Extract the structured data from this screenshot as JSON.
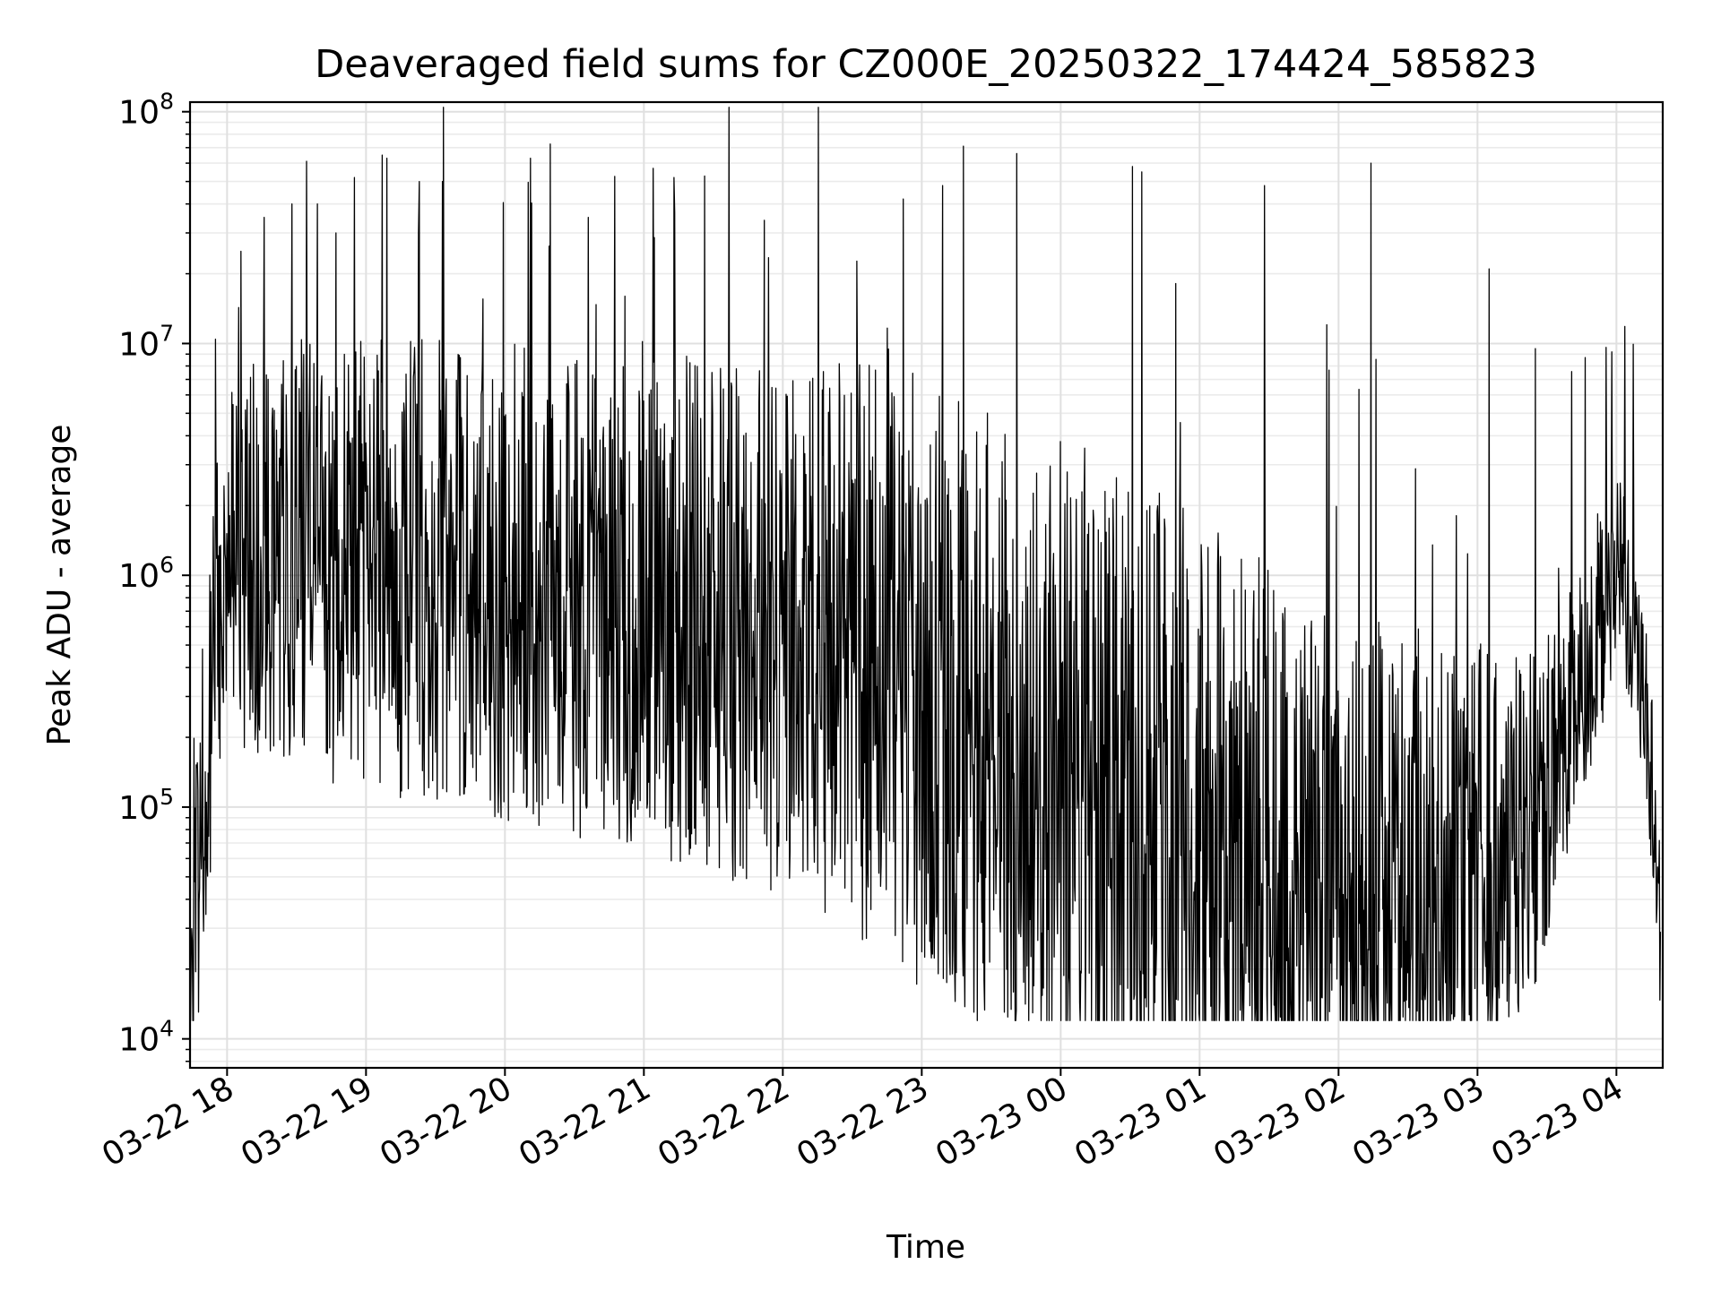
{
  "chart_data": {
    "type": "line",
    "title": "Deaveraged field sums for CZ000E_20250322_174424_585823",
    "xlabel": "Time",
    "ylabel": "Peak ADU - average",
    "x_scale": "time",
    "y_scale": "log",
    "xlim": [
      "2025-03-22 17:44",
      "2025-03-23 04:20"
    ],
    "ylim": [
      7500,
      110000000
    ],
    "grid": true,
    "line_color": "#000000",
    "x_ticks": [
      {
        "time": "2025-03-22 18:00",
        "label": "03-22 18"
      },
      {
        "time": "2025-03-22 19:00",
        "label": "03-22 19"
      },
      {
        "time": "2025-03-22 20:00",
        "label": "03-22 20"
      },
      {
        "time": "2025-03-22 21:00",
        "label": "03-22 21"
      },
      {
        "time": "2025-03-22 22:00",
        "label": "03-22 22"
      },
      {
        "time": "2025-03-22 23:00",
        "label": "03-22 23"
      },
      {
        "time": "2025-03-23 00:00",
        "label": "03-23 00"
      },
      {
        "time": "2025-03-23 01:00",
        "label": "03-23 01"
      },
      {
        "time": "2025-03-23 02:00",
        "label": "03-23 02"
      },
      {
        "time": "2025-03-23 03:00",
        "label": "03-23 03"
      },
      {
        "time": "2025-03-23 04:00",
        "label": "03-23 04"
      }
    ],
    "y_ticks": [
      {
        "value": 10000,
        "base": "10",
        "exp": "4"
      },
      {
        "value": 100000,
        "base": "10",
        "exp": "5"
      },
      {
        "value": 1000000,
        "base": "10",
        "exp": "6"
      },
      {
        "value": 10000000,
        "base": "10",
        "exp": "7"
      },
      {
        "value": 100000000,
        "base": "10",
        "exp": "8"
      }
    ],
    "series": [
      {
        "values": [
          [
            "2025-03-22 17:44",
            20000
          ],
          [
            "2025-03-22 17:46",
            15000
          ],
          [
            "2025-03-22 17:47",
            35000
          ],
          [
            "2025-03-22 17:48",
            45000
          ],
          [
            "2025-03-22 17:50",
            120000
          ],
          [
            "2025-03-22 17:52",
            180000
          ],
          [
            "2025-03-22 17:54",
            350000
          ],
          [
            "2025-03-22 17:56",
            600000
          ],
          [
            "2025-03-22 17:58",
            900000
          ],
          [
            "2025-03-22 18:05",
            1000000
          ],
          [
            "2025-03-22 18:10",
            1100000
          ],
          [
            "2025-03-22 18:20",
            1100000
          ],
          [
            "2025-03-22 18:30",
            1050000
          ],
          [
            "2025-03-22 18:45",
            1000000
          ],
          [
            "2025-03-22 19:00",
            1000000
          ],
          [
            "2025-03-22 19:15",
            950000
          ],
          [
            "2025-03-22 19:30",
            900000
          ],
          [
            "2025-03-22 19:45",
            900000
          ],
          [
            "2025-03-22 20:00",
            800000
          ],
          [
            "2025-03-22 20:20",
            750000
          ],
          [
            "2025-03-22 20:40",
            700000
          ],
          [
            "2025-03-22 21:00",
            650000
          ],
          [
            "2025-03-22 21:20",
            600000
          ],
          [
            "2025-03-22 21:40",
            550000
          ],
          [
            "2025-03-22 22:00",
            500000
          ],
          [
            "2025-03-22 22:20",
            450000
          ],
          [
            "2025-03-22 22:40",
            380000
          ],
          [
            "2025-03-22 23:00",
            300000
          ],
          [
            "2025-03-22 23:20",
            220000
          ],
          [
            "2025-03-22 23:40",
            160000
          ],
          [
            "2025-03-23 00:00",
            130000
          ],
          [
            "2025-03-23 00:20",
            100000
          ],
          [
            "2025-03-23 00:40",
            75000
          ],
          [
            "2025-03-23 01:00",
            60000
          ],
          [
            "2025-03-23 01:20",
            50000
          ],
          [
            "2025-03-23 01:40",
            45000
          ],
          [
            "2025-03-23 02:00",
            42000
          ],
          [
            "2025-03-23 02:20",
            42000
          ],
          [
            "2025-03-23 02:40",
            45000
          ],
          [
            "2025-03-23 02:55",
            50000
          ],
          [
            "2025-03-23 03:10",
            60000
          ],
          [
            "2025-03-23 03:25",
            80000
          ],
          [
            "2025-03-23 03:35",
            150000
          ],
          [
            "2025-03-23 03:45",
            350000
          ],
          [
            "2025-03-23 03:55",
            700000
          ],
          [
            "2025-03-23 04:00",
            1000000
          ],
          [
            "2025-03-23 04:06",
            700000
          ],
          [
            "2025-03-23 04:12",
            300000
          ],
          [
            "2025-03-23 04:16",
            100000
          ],
          [
            "2025-03-23 04:19",
            30000
          ]
        ],
        "noise_band_decades": [
          [
            "2025-03-22 17:55",
            0.8
          ],
          [
            "2025-03-22 18:30",
            1.0
          ],
          [
            "2025-03-22 20:00",
            1.1
          ],
          [
            "2025-03-22 22:00",
            1.2
          ],
          [
            "2025-03-22 23:00",
            1.4
          ],
          [
            "2025-03-23 00:00",
            1.5
          ],
          [
            "2025-03-23 01:00",
            1.5
          ],
          [
            "2025-03-23 02:00",
            1.3
          ],
          [
            "2025-03-23 03:00",
            1.0
          ],
          [
            "2025-03-23 03:40",
            0.6
          ],
          [
            "2025-03-23 04:10",
            0.4
          ]
        ]
      }
    ],
    "spikes": [
      [
        "2025-03-22 18:06",
        25000000
      ],
      [
        "2025-03-22 18:16",
        35000000
      ],
      [
        "2025-03-22 18:28",
        40000000
      ],
      [
        "2025-03-22 18:39",
        40000000
      ],
      [
        "2025-03-22 18:47",
        30000000
      ],
      [
        "2025-03-22 18:55",
        52000000
      ],
      [
        "2025-03-22 19:07",
        65000000
      ],
      [
        "2025-03-22 19:09",
        63000000
      ],
      [
        "2025-03-22 19:23",
        50000000
      ],
      [
        "2025-03-22 19:33",
        50000000
      ],
      [
        "2025-03-22 20:11",
        63000000
      ],
      [
        "2025-03-22 20:36",
        35000000
      ],
      [
        "2025-03-22 21:04",
        57000000
      ],
      [
        "2025-03-22 21:13",
        52000000
      ],
      [
        "2025-03-22 21:52",
        34000000
      ],
      [
        "2025-03-22 22:52",
        42000000
      ],
      [
        "2025-03-22 23:09",
        48000000
      ],
      [
        "2025-03-22 23:18",
        71000000
      ],
      [
        "2025-03-22 23:41",
        66000000
      ],
      [
        "2025-03-23 00:31",
        58000000
      ],
      [
        "2025-03-23 00:35",
        55000000
      ],
      [
        "2025-03-23 01:28",
        48000000
      ],
      [
        "2025-03-23 02:14",
        60000000
      ],
      [
        "2025-03-23 03:05",
        21000000
      ],
      [
        "2025-03-23 03:25",
        9500000
      ],
      [
        "2025-03-23 03:58",
        9200000
      ]
    ]
  }
}
